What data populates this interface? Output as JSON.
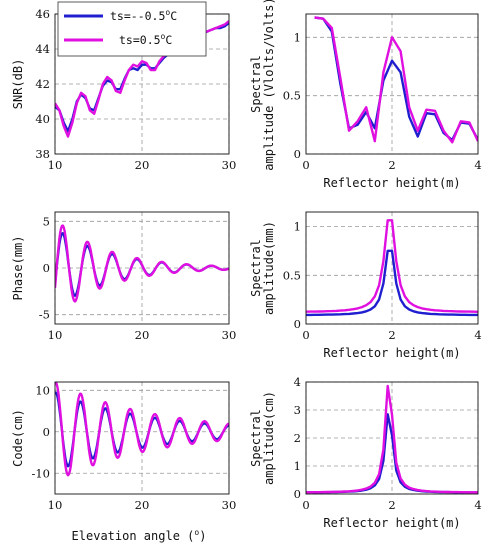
{
  "chart_data": [
    {
      "id": "snr",
      "type": "line",
      "xlabel": "",
      "ylabel": "SNR(dB)",
      "xlim": [
        10,
        30
      ],
      "ylim": [
        38,
        46
      ],
      "xticks": [
        "10",
        "20",
        "30"
      ],
      "yticks": [
        "38",
        "40",
        "42",
        "44",
        "46"
      ],
      "grid": "dashed",
      "series": [
        {
          "name": "ts=--0.5°C",
          "color": "#1f1fd0",
          "x": [
            10,
            10.5,
            11,
            11.5,
            12,
            12.5,
            13,
            13.5,
            14,
            14.5,
            15,
            15.5,
            16,
            16.5,
            17,
            17.5,
            18,
            18.5,
            19,
            19.5,
            20,
            20.5,
            21,
            21.5,
            22,
            22.5,
            23,
            23.5,
            24,
            24.5,
            25,
            25.5,
            26,
            26.5,
            27,
            27.5,
            28,
            28.5,
            29,
            29.5,
            30
          ],
          "y": [
            40.7,
            40.5,
            39.8,
            39.3,
            40.0,
            41.0,
            41.4,
            41.2,
            40.6,
            40.5,
            41.2,
            41.9,
            42.2,
            42.1,
            41.7,
            41.7,
            42.3,
            42.8,
            42.9,
            42.8,
            43.1,
            43.1,
            42.9,
            42.9,
            43.2,
            43.5,
            43.7,
            43.8,
            44.1,
            44.1,
            44.2,
            44.3,
            44.5,
            44.8,
            44.9,
            45.0,
            45.1,
            45.2,
            45.2,
            45.3,
            45.5
          ]
        },
        {
          "name": "ts=0.5°C",
          "color": "#e010e0",
          "x": [
            10,
            10.5,
            11,
            11.5,
            12,
            12.5,
            13,
            13.5,
            14,
            14.5,
            15,
            15.5,
            16,
            16.5,
            17,
            17.5,
            18,
            18.5,
            19,
            19.5,
            20,
            20.5,
            21,
            21.5,
            22,
            22.5,
            23,
            23.5,
            24,
            24.5,
            25,
            25.5,
            26,
            26.5,
            27,
            27.5,
            28,
            28.5,
            29,
            29.5,
            30
          ],
          "y": [
            40.9,
            40.5,
            39.6,
            39.0,
            39.8,
            40.9,
            41.5,
            41.3,
            40.5,
            40.3,
            41.1,
            42.0,
            42.4,
            42.2,
            41.6,
            41.5,
            42.2,
            42.8,
            43.1,
            43.0,
            43.3,
            43.2,
            42.8,
            42.8,
            43.3,
            43.6,
            43.8,
            43.9,
            44.2,
            44.2,
            44.2,
            44.3,
            44.6,
            44.9,
            45.0,
            45.0,
            45.1,
            45.2,
            45.3,
            45.4,
            45.6
          ]
        }
      ]
    },
    {
      "id": "snr-spectrum",
      "type": "line",
      "xlabel": "Reflector height(m)",
      "ylabel": "Spectral amplitude (Vlolts/Volts)",
      "xlim": [
        0,
        4
      ],
      "ylim": [
        0,
        1.2
      ],
      "xticks": [
        "0",
        "2",
        "4"
      ],
      "yticks": [
        "0",
        "0.5",
        "1"
      ],
      "grid": "dashed",
      "series": [
        {
          "name": "ts=--0.5°C",
          "color": "#1f1fd0",
          "x": [
            0.2,
            0.4,
            0.6,
            0.8,
            1.0,
            1.2,
            1.4,
            1.6,
            1.8,
            2.0,
            2.2,
            2.4,
            2.6,
            2.8,
            3.0,
            3.2,
            3.4,
            3.6,
            3.8,
            4.0
          ],
          "y": [
            1.17,
            1.16,
            1.05,
            0.6,
            0.22,
            0.25,
            0.36,
            0.22,
            0.63,
            0.8,
            0.7,
            0.32,
            0.15,
            0.35,
            0.34,
            0.18,
            0.12,
            0.27,
            0.26,
            0.12
          ]
        },
        {
          "name": "ts=0.5°C",
          "color": "#e010e0",
          "x": [
            0.2,
            0.4,
            0.6,
            0.8,
            1.0,
            1.2,
            1.4,
            1.6,
            1.8,
            2.0,
            2.2,
            2.4,
            2.6,
            2.8,
            3.0,
            3.2,
            3.4,
            3.6,
            3.8,
            4.0
          ],
          "y": [
            1.17,
            1.16,
            1.08,
            0.65,
            0.2,
            0.28,
            0.4,
            0.11,
            0.7,
            1.0,
            0.88,
            0.4,
            0.2,
            0.38,
            0.37,
            0.2,
            0.1,
            0.28,
            0.27,
            0.11
          ]
        }
      ]
    },
    {
      "id": "phase",
      "type": "line",
      "xlabel": "",
      "ylabel": "Phase(mm)",
      "xlim": [
        10,
        30
      ],
      "ylim": [
        -6,
        6
      ],
      "xticks": [
        "10",
        "20",
        "30"
      ],
      "yticks": [
        "-5",
        "0",
        "5"
      ],
      "grid": "dashed",
      "series": [
        {
          "name": "ts=--0.5°C",
          "color": "#1f1fd0",
          "amp0": 4.3,
          "decay": 0.16,
          "x0": 10.9,
          "period": 2.85
        },
        {
          "name": "ts=0.5°C",
          "color": "#e010e0",
          "amp0": 5.3,
          "decay": 0.17,
          "x0": 10.9,
          "period": 2.85
        }
      ]
    },
    {
      "id": "phase-spectrum",
      "type": "line",
      "xlabel": "Reflector height(m)",
      "ylabel": "Spectral amplitude(mm)",
      "xlim": [
        0,
        4
      ],
      "ylim": [
        0,
        1.15
      ],
      "xticks": [
        "0",
        "2",
        "4"
      ],
      "yticks": [
        "0",
        "0.5",
        "1"
      ],
      "grid": "dashed",
      "series": [
        {
          "name": "ts=--0.5°C",
          "color": "#1f1fd0",
          "peak": 0.85,
          "center": 1.95,
          "width": 0.13,
          "base": 0.09
        },
        {
          "name": "ts=0.5°C",
          "color": "#e010e0",
          "peak": 1.17,
          "center": 1.95,
          "width": 0.15,
          "base": 0.12
        }
      ]
    },
    {
      "id": "code",
      "type": "line",
      "xlabel": "Elevation angle (°)",
      "ylabel": "Code(cm)",
      "xlim": [
        10,
        30
      ],
      "ylim": [
        -15,
        12
      ],
      "xticks": [
        "10",
        "20",
        "30"
      ],
      "yticks": [
        "-10",
        "0",
        "10"
      ],
      "grid": "dashed",
      "series": [
        {
          "name": "ts=--0.5°C",
          "color": "#1f1fd0",
          "amp0": 9.5,
          "decay": 0.09,
          "x0": 10.1,
          "period": 2.85
        },
        {
          "name": "ts=0.5°C",
          "color": "#e010e0",
          "amp0": 12.0,
          "decay": 0.09,
          "x0": 10.1,
          "period": 2.85
        }
      ]
    },
    {
      "id": "code-spectrum",
      "type": "line",
      "xlabel": "Reflector height(m)",
      "ylabel": "Spectral amplitude(cm)",
      "xlim": [
        0,
        4
      ],
      "ylim": [
        0,
        4
      ],
      "xticks": [
        "0",
        "2",
        "4"
      ],
      "yticks": [
        "0",
        "1",
        "2",
        "3",
        "4"
      ],
      "grid": "dashed",
      "series": [
        {
          "name": "ts=--0.5°C",
          "color": "#1f1fd0",
          "peak": 3.1,
          "center": 1.93,
          "width": 0.1,
          "base": 0.05
        },
        {
          "name": "ts=0.5°C",
          "color": "#e010e0",
          "peak": 4.2,
          "center": 1.93,
          "width": 0.1,
          "base": 0.05
        }
      ]
    }
  ],
  "legend": {
    "placement": "top-left",
    "entries": [
      {
        "label": "ts=--0.5",
        "unit": "C",
        "color": "#1f1fd0"
      },
      {
        "label": "ts=0.5",
        "unit": "C",
        "color": "#e010e0"
      }
    ]
  },
  "shared_xlabel": {
    "prefix": "Elevation angle (",
    "sup": "o",
    "suffix": ")"
  }
}
